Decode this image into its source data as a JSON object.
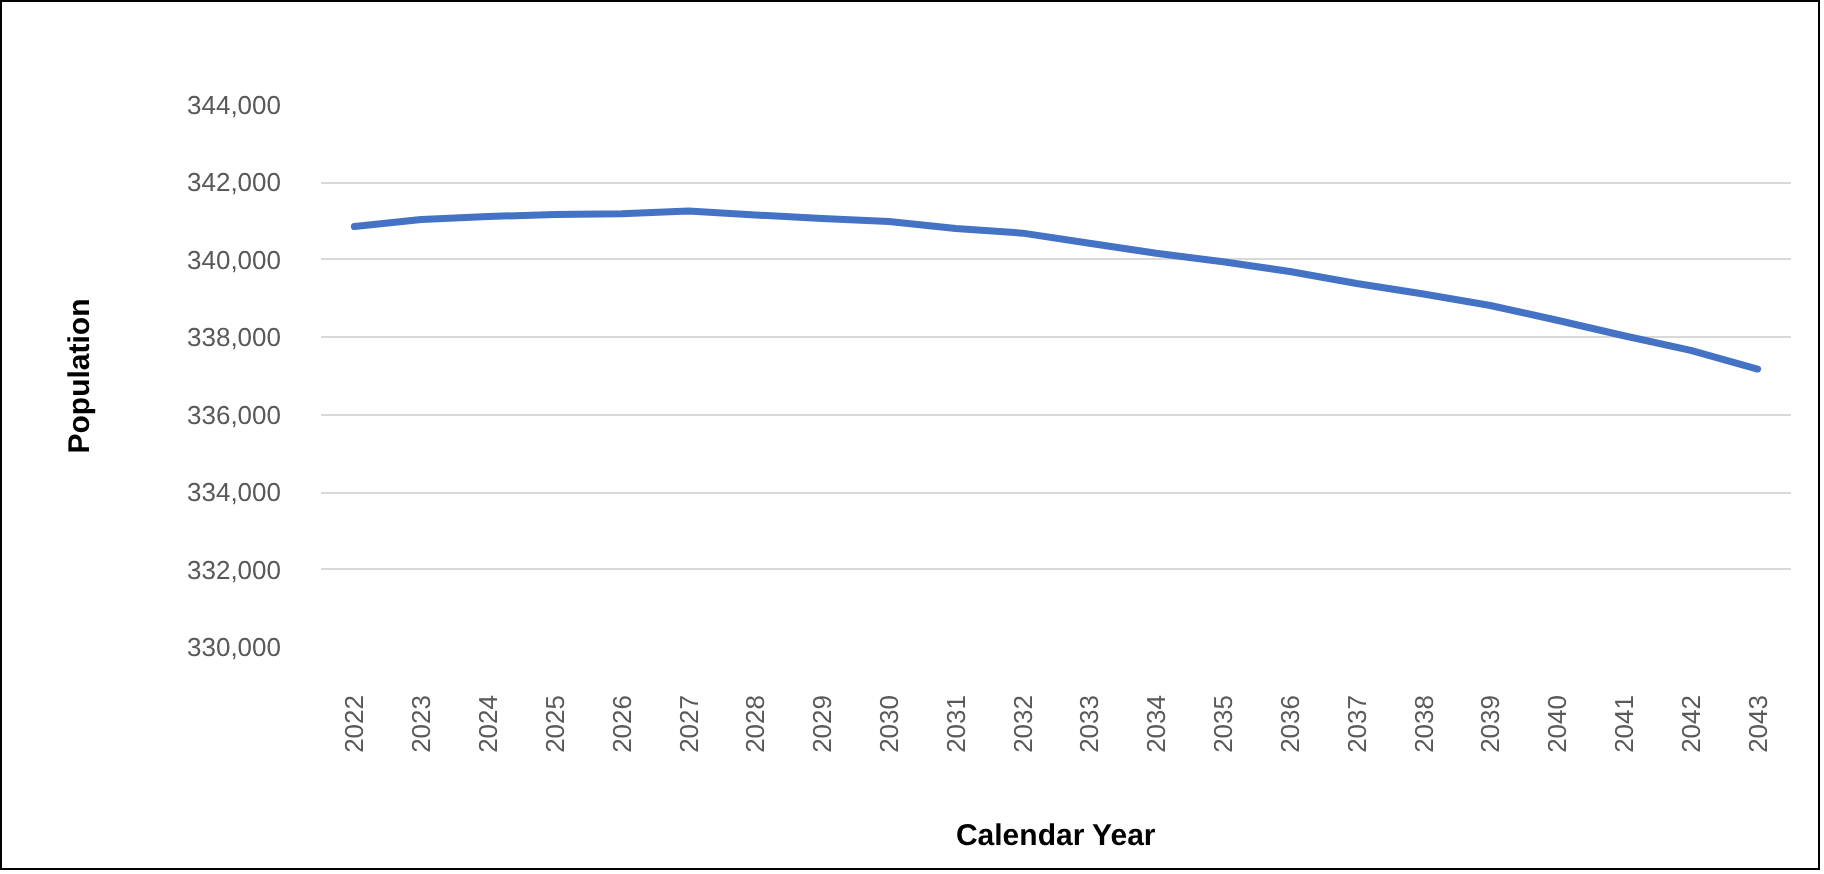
{
  "chart_data": {
    "type": "line",
    "xlabel": "Calendar Year",
    "ylabel": "Population",
    "categories": [
      "2022",
      "2023",
      "2024",
      "2025",
      "2026",
      "2027",
      "2028",
      "2029",
      "2030",
      "2031",
      "2032",
      "2033",
      "2034",
      "2035",
      "2036",
      "2037",
      "2038",
      "2039",
      "2040",
      "2041",
      "2042",
      "2043"
    ],
    "series": [
      {
        "color": "#4472c4",
        "values": [
          340860,
          341040,
          341120,
          341170,
          341190,
          341260,
          341160,
          341070,
          340990,
          340810,
          340690,
          340430,
          340170,
          339950,
          339700,
          339390,
          339120,
          338820,
          338440,
          338040,
          337660,
          337180
        ]
      }
    ],
    "ylim": [
      330000,
      344000
    ],
    "yticks": [
      {
        "value": 330000,
        "label": "330,000"
      },
      {
        "value": 332000,
        "label": "332,000"
      },
      {
        "value": 334000,
        "label": "334,000"
      },
      {
        "value": 336000,
        "label": "336,000"
      },
      {
        "value": 338000,
        "label": "338,000"
      },
      {
        "value": 340000,
        "label": "340,000"
      },
      {
        "value": 342000,
        "label": "342,000"
      },
      {
        "value": 344000,
        "label": "344,000"
      }
    ],
    "grid": "y"
  }
}
